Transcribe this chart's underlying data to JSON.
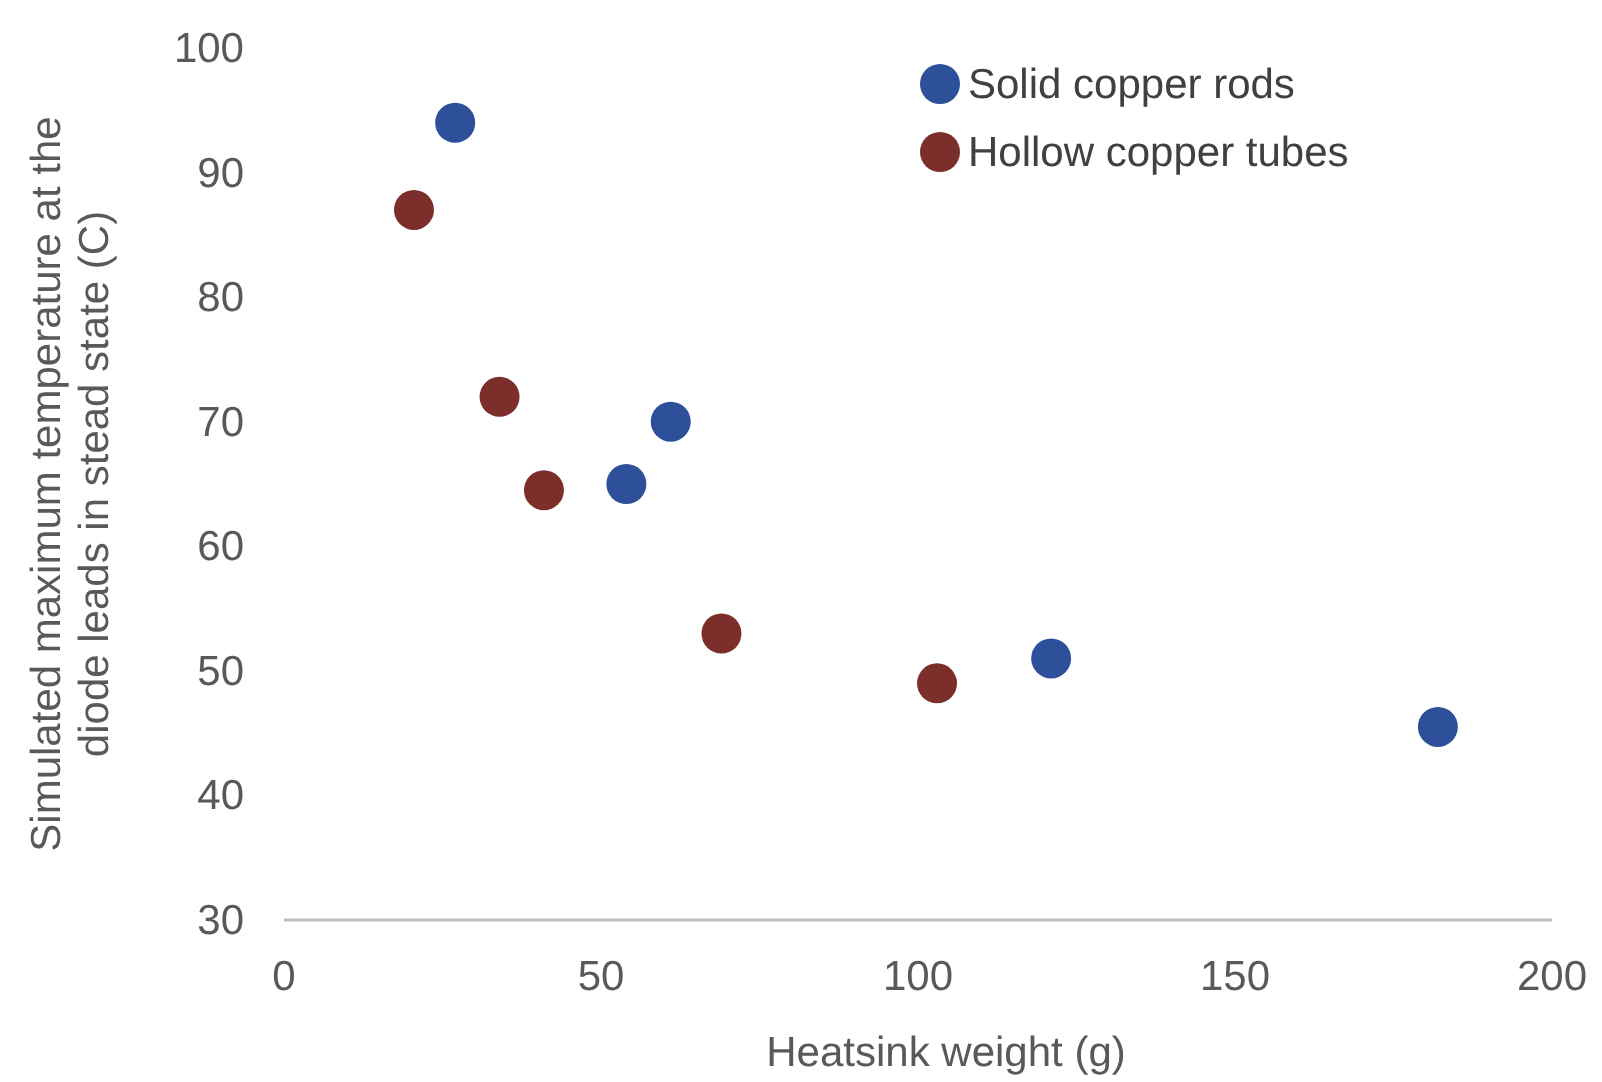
{
  "chart_data": {
    "type": "scatter",
    "xlabel": "Heatsink weight (g)",
    "ylabel": "Simulated maximum temperature at the diode leads in stead state (C)",
    "xlim": [
      0,
      200
    ],
    "xticks": [
      0,
      50,
      100,
      150,
      200
    ],
    "ylim": [
      30,
      100
    ],
    "yticks": [
      30,
      40,
      50,
      60,
      70,
      80,
      90,
      100
    ],
    "grid": false,
    "legend": "top right",
    "marker": "circle",
    "series": [
      {
        "name": "Solid copper rods",
        "color": "#2e4f9a",
        "x": [
          27,
          54,
          61,
          121,
          182
        ],
        "values": [
          94,
          65,
          70,
          51,
          45.5
        ]
      },
      {
        "name": "Hollow copper tubes",
        "color": "#7b2e2a",
        "x": [
          20.5,
          34,
          41,
          69,
          103
        ],
        "values": [
          87,
          72,
          64.5,
          53,
          49
        ]
      }
    ]
  }
}
